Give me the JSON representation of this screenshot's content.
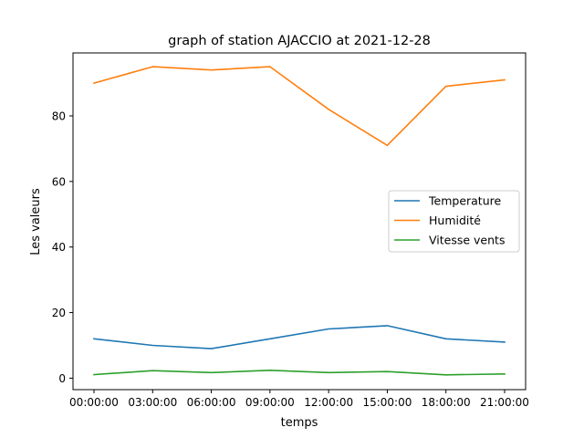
{
  "chart_data": {
    "type": "line",
    "title": "graph of station AJACCIO at 2021-12-28",
    "xlabel": "temps",
    "ylabel": "Les valeurs",
    "categories": [
      "00:00:00",
      "03:00:00",
      "06:00:00",
      "09:00:00",
      "12:00:00",
      "15:00:00",
      "18:00:00",
      "21:00:00"
    ],
    "ylim": [
      -3.5,
      99.2
    ],
    "yticks": [
      0,
      20,
      40,
      60,
      80
    ],
    "grid": false,
    "legend_position": "center-right",
    "series": [
      {
        "name": "Temperature",
        "color": "#1f77b4",
        "values": [
          12,
          10,
          9,
          12,
          15,
          16,
          12,
          11
        ]
      },
      {
        "name": "Humidité",
        "color": "#ff7f0e",
        "values": [
          90,
          95,
          94,
          95,
          82,
          71,
          89,
          91
        ]
      },
      {
        "name": "Vitesse vents",
        "color": "#2ca02c",
        "values": [
          1.1,
          2.3,
          1.7,
          2.4,
          1.7,
          2.0,
          1.0,
          1.3
        ]
      }
    ]
  }
}
